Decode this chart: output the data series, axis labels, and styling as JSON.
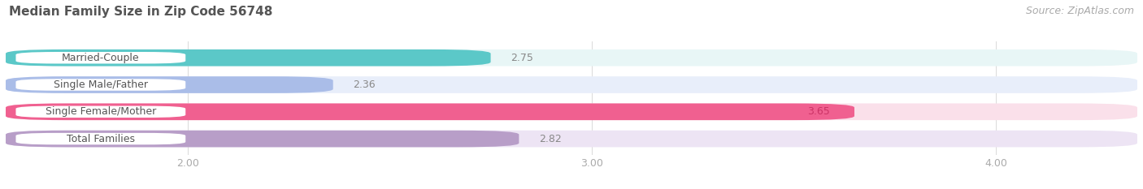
{
  "title": "Median Family Size in Zip Code 56748",
  "source": "Source: ZipAtlas.com",
  "categories": [
    "Married-Couple",
    "Single Male/Father",
    "Single Female/Mother",
    "Total Families"
  ],
  "values": [
    2.75,
    2.36,
    3.65,
    2.82
  ],
  "bar_colors": [
    "#5BC8C8",
    "#AABDE8",
    "#F06090",
    "#B89EC8"
  ],
  "bar_bg_colors": [
    "#E8F6F6",
    "#E8EEFA",
    "#FAE0EA",
    "#EDE4F4"
  ],
  "value_colors": [
    "#888888",
    "#888888",
    "#CC3366",
    "#888888"
  ],
  "xlim_data": [
    2.0,
    4.2
  ],
  "xlim_display": [
    1.55,
    4.35
  ],
  "xticks": [
    2.0,
    3.0,
    4.0
  ],
  "xtick_labels": [
    "2.00",
    "3.00",
    "4.00"
  ],
  "bar_height": 0.62,
  "figsize": [
    14.06,
    2.33
  ],
  "dpi": 100,
  "bg_color": "#FFFFFF",
  "title_fontsize": 11,
  "label_fontsize": 9,
  "value_fontsize": 9,
  "tick_fontsize": 9,
  "source_fontsize": 9
}
